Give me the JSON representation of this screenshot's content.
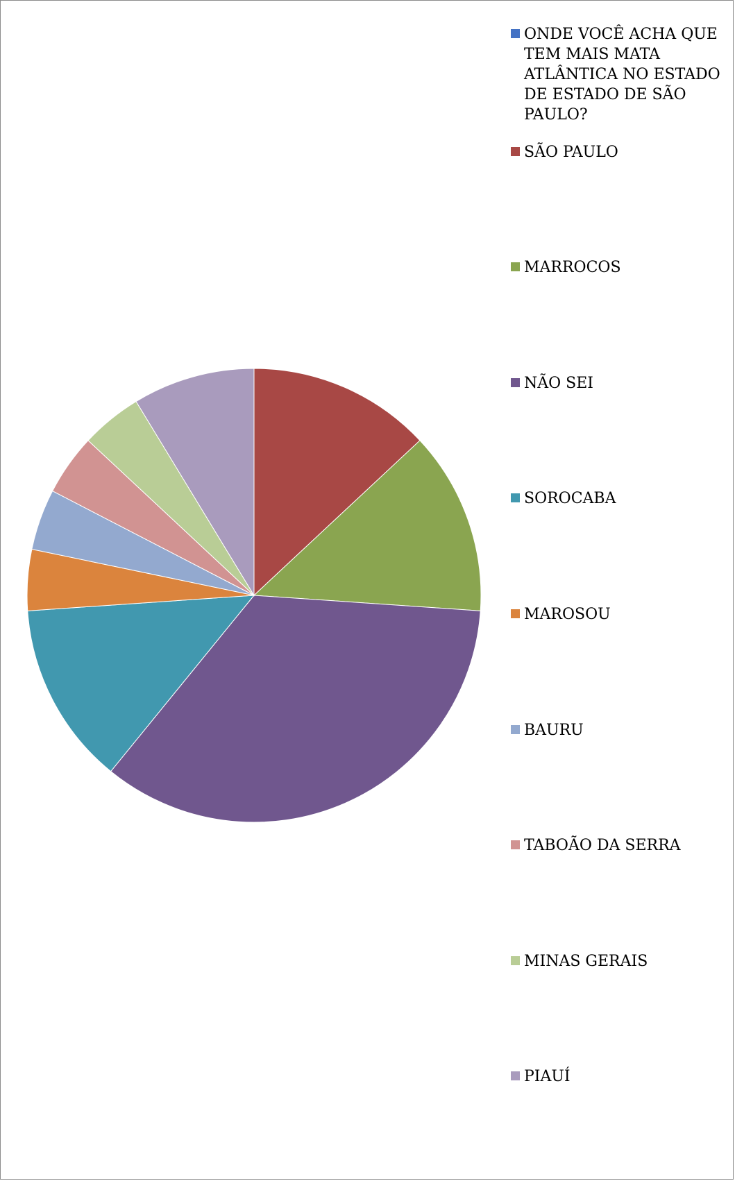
{
  "chart_data": {
    "type": "pie",
    "title": "",
    "start_angle_deg": 0,
    "direction": "clockwise",
    "slices": [
      {
        "label": "ONDE VOCÊ ACHA QUE TEM MAIS MATA ATLÂNTICA NO ESTADO DE ESTADO DE SÃO PAULO?",
        "value": 0,
        "color": "#4472C4"
      },
      {
        "label": "SÃO PAULO",
        "value": 3,
        "color": "#A84845"
      },
      {
        "label": "MARROCOS",
        "value": 3,
        "color": "#8AA550"
      },
      {
        "label": "NÃO SEI",
        "value": 8,
        "color": "#70578E"
      },
      {
        "label": "SOROCABA",
        "value": 3,
        "color": "#4198AF"
      },
      {
        "label": "MAROSOU",
        "value": 1,
        "color": "#DB843D"
      },
      {
        "label": "BAURU",
        "value": 1,
        "color": "#93A9CF"
      },
      {
        "label": "TABOÃO DA SERRA",
        "value": 1,
        "color": "#D19392"
      },
      {
        "label": "MINAS GERAIS",
        "value": 1,
        "color": "#B9CD96"
      },
      {
        "label": "PIAUÍ",
        "value": 2,
        "color": "#A99BBD"
      }
    ],
    "legend_position": "right"
  }
}
